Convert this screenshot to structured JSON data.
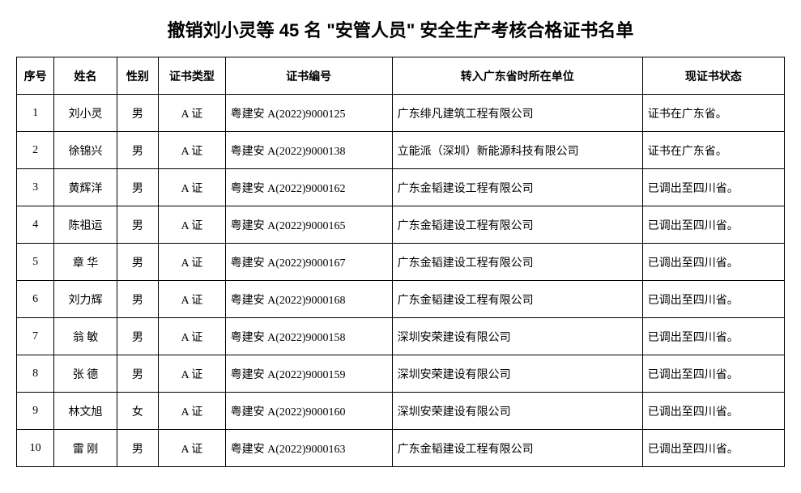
{
  "title": "撤销刘小灵等 45 名 \"安管人员\" 安全生产考核合格证书名单",
  "columns": [
    "序号",
    "姓名",
    "性别",
    "证书类型",
    "证书编号",
    "转入广东省时所在单位",
    "现证书状态"
  ],
  "rows": [
    {
      "seq": "1",
      "name": "刘小灵",
      "sex": "男",
      "type": "A 证",
      "no": "粤建安 A(2022)9000125",
      "unit": "广东绯凡建筑工程有限公司",
      "status": "证书在广东省。"
    },
    {
      "seq": "2",
      "name": "徐锦兴",
      "sex": "男",
      "type": "A 证",
      "no": "粤建安 A(2022)9000138",
      "unit": "立能派（深圳）新能源科技有限公司",
      "status": "证书在广东省。"
    },
    {
      "seq": "3",
      "name": "黄辉洋",
      "sex": "男",
      "type": "A 证",
      "no": "粤建安 A(2022)9000162",
      "unit": "广东金韬建设工程有限公司",
      "status": "已调出至四川省。"
    },
    {
      "seq": "4",
      "name": "陈祖运",
      "sex": "男",
      "type": "A 证",
      "no": "粤建安 A(2022)9000165",
      "unit": "广东金韬建设工程有限公司",
      "status": "已调出至四川省。"
    },
    {
      "seq": "5",
      "name": "章  华",
      "sex": "男",
      "type": "A 证",
      "no": "粤建安 A(2022)9000167",
      "unit": "广东金韬建设工程有限公司",
      "status": "已调出至四川省。"
    },
    {
      "seq": "6",
      "name": "刘力辉",
      "sex": "男",
      "type": "A 证",
      "no": "粤建安 A(2022)9000168",
      "unit": "广东金韬建设工程有限公司",
      "status": "已调出至四川省。"
    },
    {
      "seq": "7",
      "name": "翁  敏",
      "sex": "男",
      "type": "A 证",
      "no": "粤建安 A(2022)9000158",
      "unit": "深圳安荣建设有限公司",
      "status": "已调出至四川省。"
    },
    {
      "seq": "8",
      "name": "张  德",
      "sex": "男",
      "type": "A 证",
      "no": "粤建安 A(2022)9000159",
      "unit": "深圳安荣建设有限公司",
      "status": "已调出至四川省。"
    },
    {
      "seq": "9",
      "name": "林文旭",
      "sex": "女",
      "type": "A 证",
      "no": "粤建安 A(2022)9000160",
      "unit": "深圳安荣建设有限公司",
      "status": "已调出至四川省。"
    },
    {
      "seq": "10",
      "name": "雷  刚",
      "sex": "男",
      "type": "A 证",
      "no": "粤建安 A(2022)9000163",
      "unit": "广东金韬建设工程有限公司",
      "status": "已调出至四川省。"
    }
  ]
}
